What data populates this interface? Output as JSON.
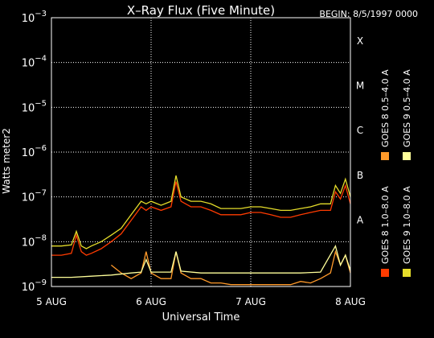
{
  "chart_data": {
    "type": "line",
    "title": "X–Ray Flux (Five Minute)",
    "begin_label": "BEGIN: 8/5/1997 0000",
    "xlabel": "Universal Time",
    "ylabel": "Watts meter2",
    "yscale": "log",
    "ylim": [
      1e-09,
      0.001
    ],
    "xlim_days": [
      0,
      3
    ],
    "x_ticks": [
      "5 AUG",
      "6 AUG",
      "7 AUG",
      "8 AUG"
    ],
    "y_ticks": [
      {
        "base": "10",
        "exp": "−9"
      },
      {
        "base": "10",
        "exp": "−8"
      },
      {
        "base": "10",
        "exp": "−7"
      },
      {
        "base": "10",
        "exp": "−6"
      },
      {
        "base": "10",
        "exp": "−5"
      },
      {
        "base": "10",
        "exp": "−4"
      },
      {
        "base": "10",
        "exp": "−3"
      }
    ],
    "flare_classes": [
      {
        "label": "A",
        "level": 1e-08
      },
      {
        "label": "B",
        "level": 1e-07
      },
      {
        "label": "C",
        "level": 1e-06
      },
      {
        "label": "M",
        "level": 1e-05
      },
      {
        "label": "X",
        "level": 0.0001
      }
    ],
    "grid": "dotted",
    "legend_position": "right",
    "series": [
      {
        "name": "GOES 8 1.0–8.0 A",
        "color": "#ff3b00",
        "x": [
          0,
          0.1,
          0.2,
          0.25,
          0.3,
          0.35,
          0.4,
          0.5,
          0.6,
          0.7,
          0.8,
          0.9,
          0.95,
          1.0,
          1.1,
          1.2,
          1.25,
          1.3,
          1.4,
          1.5,
          1.6,
          1.7,
          1.8,
          1.9,
          2.0,
          2.1,
          2.2,
          2.3,
          2.4,
          2.5,
          2.6,
          2.7,
          2.8,
          2.85,
          2.9,
          2.95,
          3.0
        ],
        "y": [
          5e-09,
          5e-09,
          5.5e-09,
          1.4e-08,
          6e-09,
          5e-09,
          5.5e-09,
          7e-09,
          1e-08,
          1.5e-08,
          3e-08,
          6e-08,
          5e-08,
          6e-08,
          5e-08,
          6e-08,
          2.2e-07,
          8e-08,
          6e-08,
          6e-08,
          5e-08,
          4e-08,
          4e-08,
          4e-08,
          4.5e-08,
          4.5e-08,
          4e-08,
          3.5e-08,
          3.5e-08,
          4e-08,
          4.5e-08,
          5e-08,
          5e-08,
          1.3e-07,
          9e-08,
          1.8e-07,
          7e-08
        ]
      },
      {
        "name": "GOES 8 0.5–4.0 A",
        "color": "#ff9a2a",
        "x": [
          0.6,
          0.7,
          0.8,
          0.9,
          0.95,
          1.0,
          1.1,
          1.2,
          1.25,
          1.3,
          1.4,
          1.5,
          1.6,
          1.7,
          1.8,
          1.9,
          2.0,
          2.1,
          2.2,
          2.3,
          2.4,
          2.5,
          2.6,
          2.7,
          2.8,
          2.85,
          2.9,
          2.95,
          3.0
        ],
        "y": [
          3e-09,
          2e-09,
          1.5e-09,
          2e-09,
          6e-09,
          2e-09,
          1.5e-09,
          1.5e-09,
          6e-09,
          2e-09,
          1.5e-09,
          1.5e-09,
          1.2e-09,
          1.2e-09,
          1.1e-09,
          1.1e-09,
          1.1e-09,
          1.1e-09,
          1.1e-09,
          1.1e-09,
          1.1e-09,
          1.3e-09,
          1.2e-09,
          1.5e-09,
          2e-09,
          6e-09,
          3e-09,
          5e-09,
          2e-09
        ]
      },
      {
        "name": "GOES 9 1.0–8.0 A",
        "color": "#e5dd2a",
        "x": [
          0,
          0.1,
          0.2,
          0.25,
          0.3,
          0.35,
          0.4,
          0.5,
          0.6,
          0.7,
          0.8,
          0.9,
          0.95,
          1.0,
          1.1,
          1.2,
          1.25,
          1.3,
          1.4,
          1.5,
          1.6,
          1.7,
          1.8,
          1.9,
          2.0,
          2.1,
          2.2,
          2.3,
          2.4,
          2.5,
          2.6,
          2.7,
          2.8,
          2.85,
          2.9,
          2.95,
          3.0
        ],
        "y": [
          8e-09,
          8e-09,
          8.5e-09,
          1.7e-08,
          8e-09,
          7e-09,
          8e-09,
          1e-08,
          1.4e-08,
          2e-08,
          4e-08,
          8e-08,
          7e-08,
          8e-08,
          6.5e-08,
          8e-08,
          3e-07,
          1e-07,
          8e-08,
          8e-08,
          7e-08,
          5.5e-08,
          5.5e-08,
          5.5e-08,
          6e-08,
          6e-08,
          5.5e-08,
          5e-08,
          5e-08,
          5.5e-08,
          6e-08,
          7e-08,
          7e-08,
          1.8e-07,
          1.2e-07,
          2.5e-07,
          1e-07
        ]
      },
      {
        "name": "GOES 9 0.5–4.0 A",
        "color": "#ffff9a",
        "x": [
          0,
          0.2,
          0.4,
          0.6,
          0.8,
          0.9,
          0.95,
          1.0,
          1.2,
          1.25,
          1.3,
          1.5,
          1.7,
          1.9,
          2.1,
          2.3,
          2.5,
          2.7,
          2.85,
          2.9,
          2.95,
          3.0
        ],
        "y": [
          1.6e-09,
          1.6e-09,
          1.7e-09,
          1.8e-09,
          2e-09,
          2.1e-09,
          4e-09,
          2.1e-09,
          2.1e-09,
          6e-09,
          2.2e-09,
          2e-09,
          2e-09,
          2e-09,
          2e-09,
          2e-09,
          2e-09,
          2.1e-09,
          8e-09,
          3e-09,
          5e-09,
          2.3e-09
        ]
      }
    ]
  }
}
